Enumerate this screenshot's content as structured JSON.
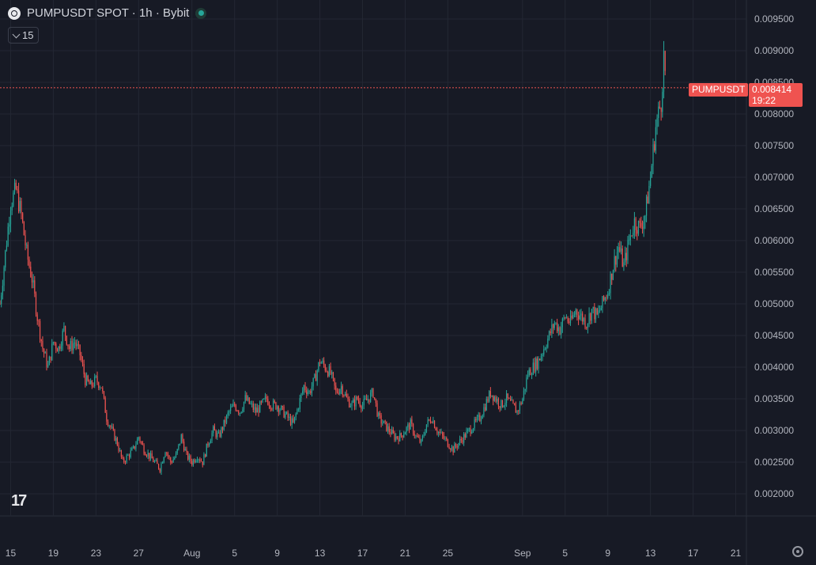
{
  "header": {
    "title": "PUMPUSDT SPOT · 1h · Bybit",
    "indicator_count": "15"
  },
  "last_price": {
    "symbol": "PUMPUSDT",
    "value": "0.008414",
    "countdown": "19:22",
    "color": "#ef5350"
  },
  "colors": {
    "up": "#26a69a",
    "down": "#ef5350",
    "background": "#171a25",
    "grid": "#232733",
    "text": "#b2b5be"
  },
  "chart_data": {
    "type": "line",
    "title": "PUMPUSDT SPOT · 1h · Bybit",
    "ylim": [
      0.00165,
      0.0098
    ],
    "x_range": [
      "2025-07-14",
      "2025-09-22"
    ],
    "y_ticks": [
      "0.009500",
      "0.009000",
      "0.008500",
      "0.008000",
      "0.007500",
      "0.007000",
      "0.006500",
      "0.006000",
      "0.005500",
      "0.005000",
      "0.004500",
      "0.004000",
      "0.003500",
      "0.003000",
      "0.002500",
      "0.002000"
    ],
    "x_ticks": [
      {
        "date": "2025-07-15",
        "label": "15"
      },
      {
        "date": "2025-07-19",
        "label": "19"
      },
      {
        "date": "2025-07-23",
        "label": "23"
      },
      {
        "date": "2025-07-27",
        "label": "27"
      },
      {
        "date": "2025-08-01",
        "label": "Aug"
      },
      {
        "date": "2025-08-05",
        "label": "5"
      },
      {
        "date": "2025-08-09",
        "label": "9"
      },
      {
        "date": "2025-08-13",
        "label": "13"
      },
      {
        "date": "2025-08-17",
        "label": "17"
      },
      {
        "date": "2025-08-21",
        "label": "21"
      },
      {
        "date": "2025-08-25",
        "label": "25"
      },
      {
        "date": "2025-09-01",
        "label": "Sep"
      },
      {
        "date": "2025-09-05",
        "label": "5"
      },
      {
        "date": "2025-09-09",
        "label": "9"
      },
      {
        "date": "2025-09-13",
        "label": "13"
      },
      {
        "date": "2025-09-17",
        "label": "17"
      },
      {
        "date": "2025-09-21",
        "label": "21"
      }
    ],
    "series": [
      {
        "points": [
          [
            "2025-07-14",
            0.005
          ],
          [
            "2025-07-14T12:00",
            0.0058
          ],
          [
            "2025-07-15",
            0.0066
          ],
          [
            "2025-07-15T12:00",
            0.0068
          ],
          [
            "2025-07-16",
            0.0064
          ],
          [
            "2025-07-16T12:00",
            0.0058
          ],
          [
            "2025-07-17",
            0.0054
          ],
          [
            "2025-07-17T12:00",
            0.0048
          ],
          [
            "2025-07-18",
            0.0043
          ],
          [
            "2025-07-18T12:00",
            0.004
          ],
          [
            "2025-07-19",
            0.0044
          ],
          [
            "2025-07-19T12:00",
            0.0043
          ],
          [
            "2025-07-20",
            0.0046
          ],
          [
            "2025-07-20T12:00",
            0.0043
          ],
          [
            "2025-07-21",
            0.0044
          ],
          [
            "2025-07-21T12:00",
            0.0042
          ],
          [
            "2025-07-22",
            0.0038
          ],
          [
            "2025-07-22T12:00",
            0.0037
          ],
          [
            "2025-07-23",
            0.0038
          ],
          [
            "2025-07-23T12:00",
            0.0037
          ],
          [
            "2025-07-24",
            0.0032
          ],
          [
            "2025-07-24T12:00",
            0.003
          ],
          [
            "2025-07-25",
            0.0028
          ],
          [
            "2025-07-25T12:00",
            0.0025
          ],
          [
            "2025-07-26",
            0.0026
          ],
          [
            "2025-07-26T12:00",
            0.0027
          ],
          [
            "2025-07-27",
            0.0029
          ],
          [
            "2025-07-27T12:00",
            0.0027
          ],
          [
            "2025-07-28",
            0.0026
          ],
          [
            "2025-07-28T12:00",
            0.0025
          ],
          [
            "2025-07-29",
            0.0024
          ],
          [
            "2025-07-29T12:00",
            0.0027
          ],
          [
            "2025-07-30",
            0.0025
          ],
          [
            "2025-07-30T12:00",
            0.0026
          ],
          [
            "2025-07-31",
            0.0029
          ],
          [
            "2025-07-31T12:00",
            0.0026
          ],
          [
            "2025-08-01",
            0.0025
          ],
          [
            "2025-08-01T12:00",
            0.0026
          ],
          [
            "2025-08-02",
            0.0025
          ],
          [
            "2025-08-02T12:00",
            0.0028
          ],
          [
            "2025-08-03",
            0.003
          ],
          [
            "2025-08-03T12:00",
            0.0029
          ],
          [
            "2025-08-04",
            0.0031
          ],
          [
            "2025-08-04T12:00",
            0.0033
          ],
          [
            "2025-08-05",
            0.0034
          ],
          [
            "2025-08-05T12:00",
            0.0033
          ],
          [
            "2025-08-06",
            0.0035
          ],
          [
            "2025-08-06T12:00",
            0.0034
          ],
          [
            "2025-08-07",
            0.0033
          ],
          [
            "2025-08-07T12:00",
            0.0034
          ],
          [
            "2025-08-08",
            0.0035
          ],
          [
            "2025-08-08T12:00",
            0.0034
          ],
          [
            "2025-08-09",
            0.0034
          ],
          [
            "2025-08-09T12:00",
            0.0033
          ],
          [
            "2025-08-10",
            0.0032
          ],
          [
            "2025-08-10T12:00",
            0.0031
          ],
          [
            "2025-08-11",
            0.0034
          ],
          [
            "2025-08-11T12:00",
            0.0037
          ],
          [
            "2025-08-12",
            0.0036
          ],
          [
            "2025-08-12T12:00",
            0.0038
          ],
          [
            "2025-08-13",
            0.0041
          ],
          [
            "2025-08-13T12:00",
            0.004
          ],
          [
            "2025-08-14",
            0.0039
          ],
          [
            "2025-08-14T12:00",
            0.0036
          ],
          [
            "2025-08-15",
            0.0037
          ],
          [
            "2025-08-15T12:00",
            0.0035
          ],
          [
            "2025-08-16",
            0.0034
          ],
          [
            "2025-08-16T12:00",
            0.0035
          ],
          [
            "2025-08-17",
            0.0034
          ],
          [
            "2025-08-17T12:00",
            0.0035
          ],
          [
            "2025-08-18",
            0.0036
          ],
          [
            "2025-08-18T12:00",
            0.0032
          ],
          [
            "2025-08-19",
            0.0031
          ],
          [
            "2025-08-19T12:00",
            0.003
          ],
          [
            "2025-08-20",
            0.0029
          ],
          [
            "2025-08-20T12:00",
            0.0029
          ],
          [
            "2025-08-21",
            0.003
          ],
          [
            "2025-08-21T12:00",
            0.0031
          ],
          [
            "2025-08-22",
            0.0029
          ],
          [
            "2025-08-22T12:00",
            0.0028
          ],
          [
            "2025-08-23",
            0.0031
          ],
          [
            "2025-08-23T12:00",
            0.0032
          ],
          [
            "2025-08-24",
            0.003
          ],
          [
            "2025-08-24T12:00",
            0.0029
          ],
          [
            "2025-08-25",
            0.0028
          ],
          [
            "2025-08-25T12:00",
            0.0027
          ],
          [
            "2025-08-26",
            0.0028
          ],
          [
            "2025-08-26T12:00",
            0.0029
          ],
          [
            "2025-08-27",
            0.003
          ],
          [
            "2025-08-27T12:00",
            0.0031
          ],
          [
            "2025-08-28",
            0.0032
          ],
          [
            "2025-08-28T12:00",
            0.0034
          ],
          [
            "2025-08-29",
            0.0036
          ],
          [
            "2025-08-29T12:00",
            0.0035
          ],
          [
            "2025-08-30",
            0.0034
          ],
          [
            "2025-08-30T12:00",
            0.0035
          ],
          [
            "2025-08-31",
            0.0034
          ],
          [
            "2025-08-31T12:00",
            0.0033
          ],
          [
            "2025-09-01",
            0.0035
          ],
          [
            "2025-09-01T12:00",
            0.0039
          ],
          [
            "2025-09-02",
            0.004
          ],
          [
            "2025-09-02T12:00",
            0.0041
          ],
          [
            "2025-09-03",
            0.0043
          ],
          [
            "2025-09-03T12:00",
            0.0045
          ],
          [
            "2025-09-04",
            0.0047
          ],
          [
            "2025-09-04T12:00",
            0.0046
          ],
          [
            "2025-09-05",
            0.0048
          ],
          [
            "2025-09-05T12:00",
            0.0047
          ],
          [
            "2025-09-06",
            0.0049
          ],
          [
            "2025-09-06T12:00",
            0.0048
          ],
          [
            "2025-09-07",
            0.0047
          ],
          [
            "2025-09-07T12:00",
            0.0049
          ],
          [
            "2025-09-08",
            0.0048
          ],
          [
            "2025-09-08T12:00",
            0.005
          ],
          [
            "2025-09-09",
            0.0052
          ],
          [
            "2025-09-09T12:00",
            0.0056
          ],
          [
            "2025-09-10",
            0.0059
          ],
          [
            "2025-09-10T12:00",
            0.0056
          ],
          [
            "2025-09-11",
            0.006
          ],
          [
            "2025-09-11T12:00",
            0.0063
          ],
          [
            "2025-09-12",
            0.0062
          ],
          [
            "2025-09-12T12:00",
            0.0064
          ],
          [
            "2025-09-13",
            0.007
          ],
          [
            "2025-09-13T12:00",
            0.0078
          ],
          [
            "2025-09-14",
            0.0082
          ],
          [
            "2025-09-14T06:00",
            0.0089
          ],
          [
            "2025-09-14T12:00",
            0.0084
          ]
        ]
      }
    ]
  }
}
